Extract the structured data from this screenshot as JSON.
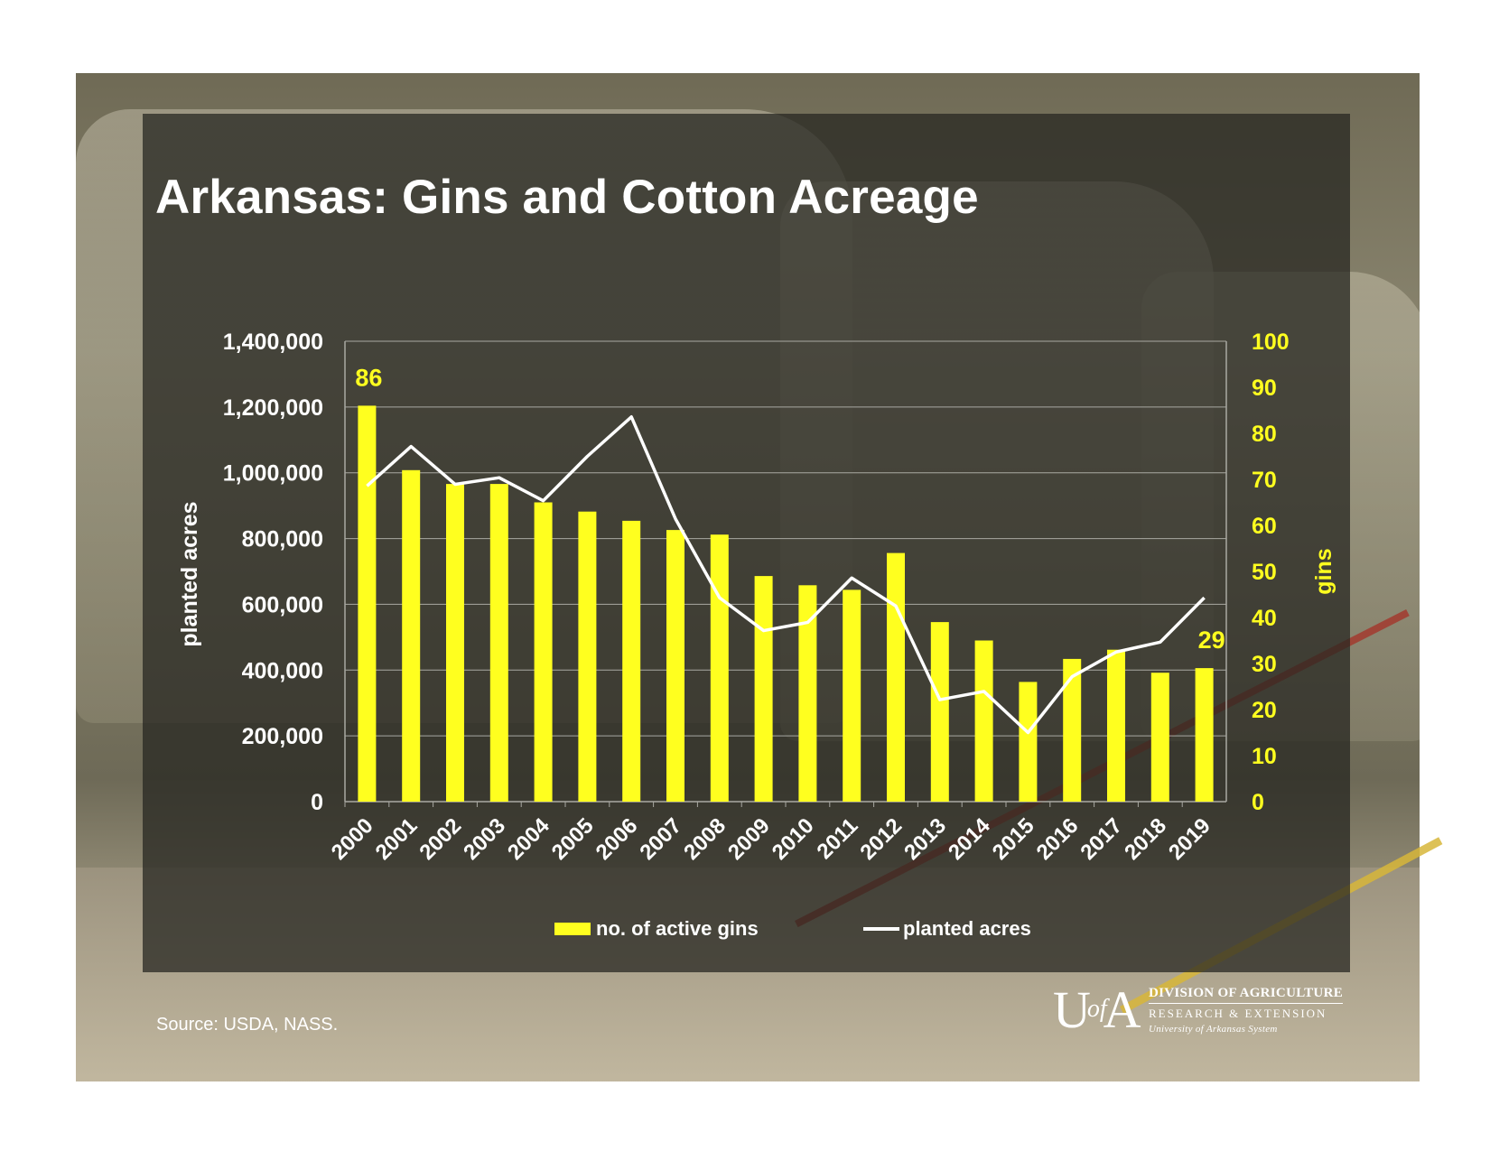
{
  "title": "Arkansas: Gins and Cotton Acreage",
  "source": "Source: USDA, NASS.",
  "logo": {
    "mark_left": "U",
    "mark_of": "of",
    "mark_right": "A",
    "line1": "DIVISION OF AGRICULTURE",
    "line2": "RESEARCH & EXTENSION",
    "line3": "University of Arkansas System"
  },
  "legend": {
    "bars": "no. of active gins",
    "line": "planted acres"
  },
  "colors": {
    "bars": "#ffff1f",
    "line": "#ffffff",
    "right_axis_text": "#ffff1f",
    "left_axis_text": "#ffffff",
    "grid": "#a9a9a2"
  },
  "chart_data": {
    "type": "bar",
    "categories": [
      "2000",
      "2001",
      "2002",
      "2003",
      "2004",
      "2005",
      "2006",
      "2007",
      "2008",
      "2009",
      "2010",
      "2011",
      "2012",
      "2013",
      "2014",
      "2015",
      "2016",
      "2017",
      "2018",
      "2019"
    ],
    "series": [
      {
        "name": "no. of active gins",
        "type": "bar",
        "axis": "right",
        "values": [
          86,
          72,
          69,
          69,
          65,
          63,
          61,
          59,
          58,
          49,
          47,
          46,
          54,
          39,
          35,
          26,
          31,
          33,
          28,
          29
        ]
      },
      {
        "name": "planted acres",
        "type": "line",
        "axis": "left",
        "values": [
          960000,
          1080000,
          965000,
          985000,
          915000,
          1050000,
          1170000,
          860000,
          620000,
          520000,
          545000,
          680000,
          595000,
          310000,
          335000,
          210000,
          380000,
          455000,
          485000,
          620000
        ]
      }
    ],
    "data_labels": [
      {
        "category": "2000",
        "text": "86"
      },
      {
        "category": "2019",
        "text": "29"
      }
    ],
    "left_axis": {
      "label": "planted acres",
      "ylim": [
        0,
        1400000
      ],
      "ticks": [
        "0",
        "200,000",
        "400,000",
        "600,000",
        "800,000",
        "1,000,000",
        "1,200,000",
        "1,400,000"
      ]
    },
    "right_axis": {
      "label": "gins",
      "ylim": [
        0,
        100
      ],
      "ticks": [
        "0",
        "10",
        "20",
        "30",
        "40",
        "50",
        "60",
        "70",
        "80",
        "90",
        "100"
      ]
    },
    "grid": true,
    "legend_position": "bottom"
  }
}
